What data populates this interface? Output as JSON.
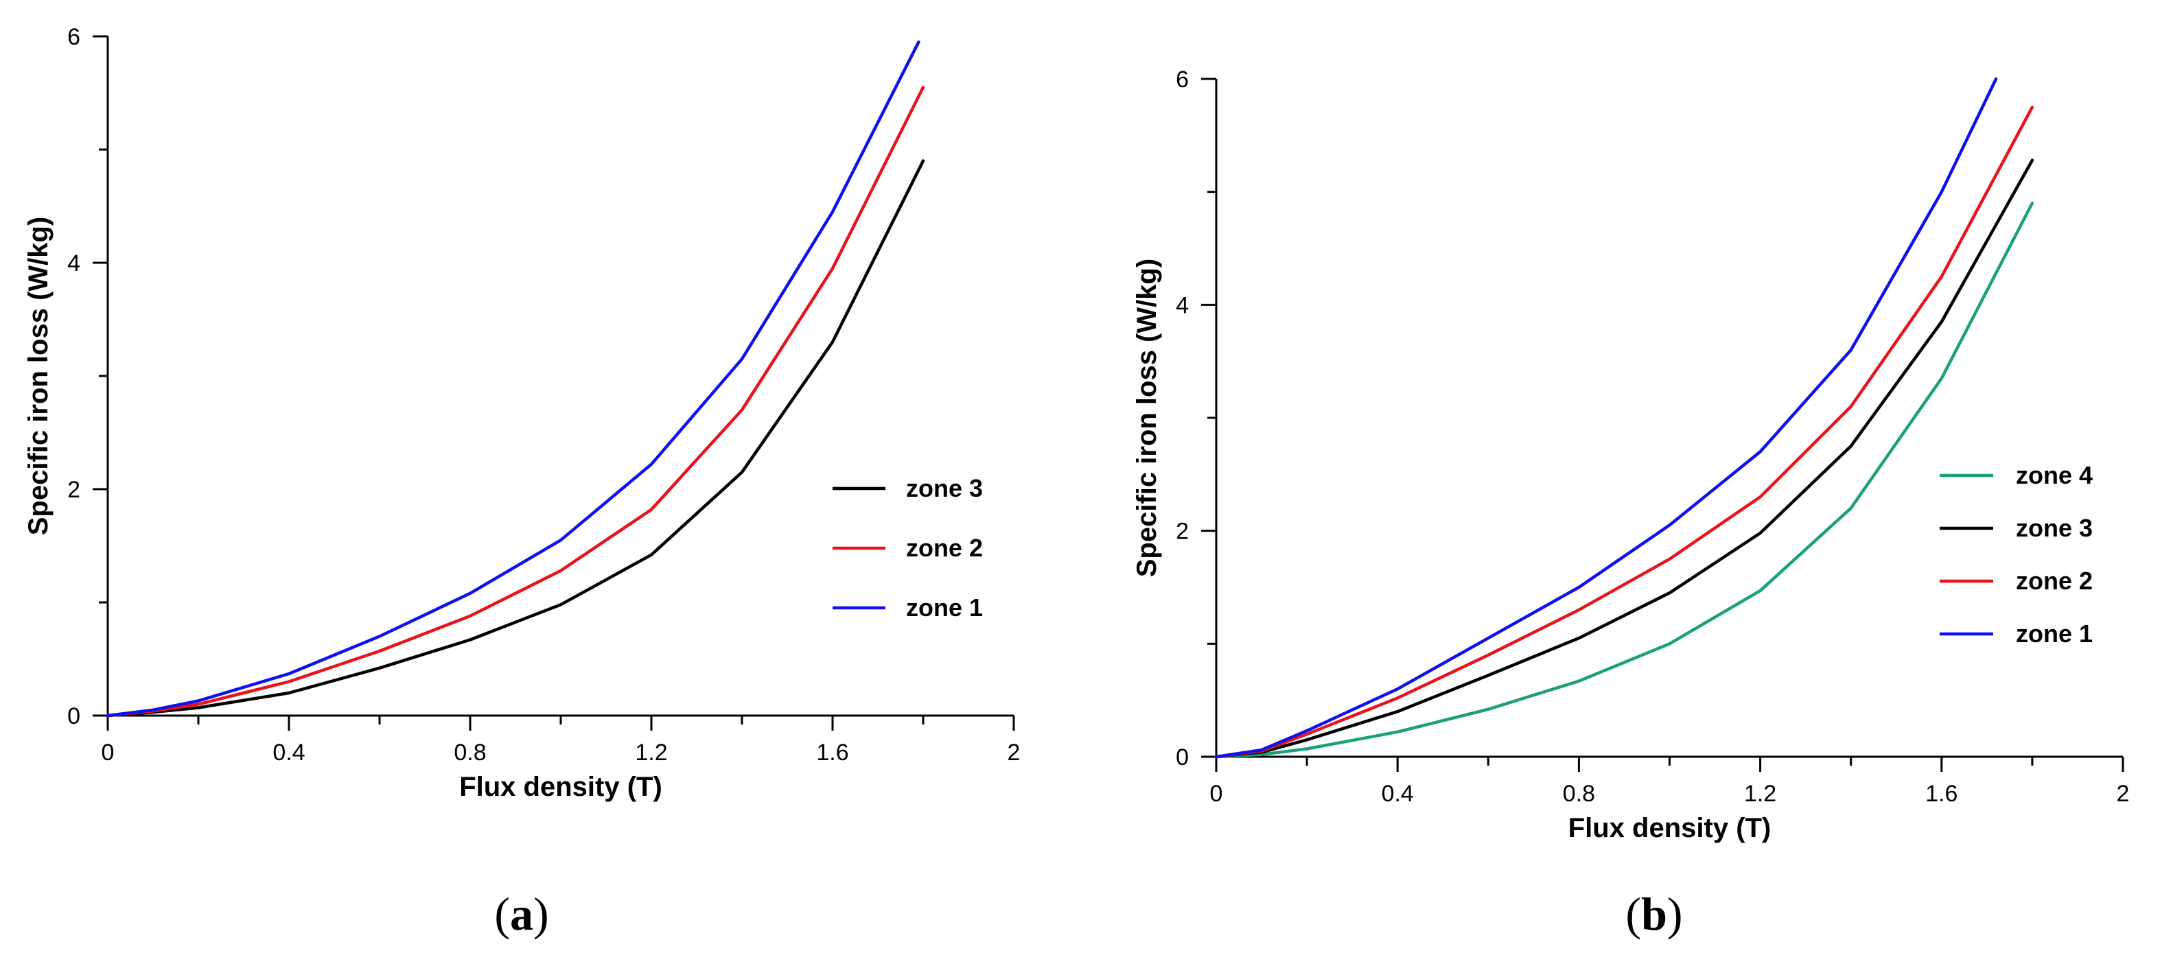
{
  "chart_data": [
    {
      "type": "line",
      "panel": "a",
      "caption_open": "(",
      "caption_letter": "a",
      "caption_close": ")",
      "xlabel": "Flux density (T)",
      "ylabel": "Specific iron loss (W/kg)",
      "xlim": [
        0,
        2
      ],
      "ylim": [
        0,
        6
      ],
      "x_ticks": [
        0,
        0.4,
        0.8,
        1.2,
        1.6,
        2
      ],
      "x_tick_labels": [
        "0",
        "0.4",
        "0.8",
        "1.2",
        "1.6",
        "2"
      ],
      "y_ticks": [
        0,
        2,
        4,
        6
      ],
      "y_tick_labels": [
        "0",
        "2",
        "4",
        "6"
      ],
      "legend_position": "center-right",
      "series": [
        {
          "name": "zone 3",
          "color": "#000000",
          "x": [
            0,
            0.1,
            0.2,
            0.4,
            0.6,
            0.8,
            1.0,
            1.2,
            1.4,
            1.6,
            1.8
          ],
          "y": [
            0,
            0.03,
            0.07,
            0.2,
            0.42,
            0.67,
            0.98,
            1.42,
            2.15,
            3.3,
            4.9
          ]
        },
        {
          "name": "zone 2",
          "color": "#e8141c",
          "x": [
            0,
            0.1,
            0.2,
            0.4,
            0.6,
            0.8,
            1.0,
            1.2,
            1.4,
            1.6,
            1.8
          ],
          "y": [
            0,
            0.04,
            0.1,
            0.3,
            0.57,
            0.88,
            1.28,
            1.82,
            2.7,
            3.95,
            5.55
          ]
        },
        {
          "name": "zone 1",
          "color": "#1010ee",
          "x": [
            0,
            0.1,
            0.2,
            0.4,
            0.6,
            0.8,
            1.0,
            1.2,
            1.4,
            1.6,
            1.79
          ],
          "y": [
            0,
            0.05,
            0.13,
            0.37,
            0.7,
            1.08,
            1.55,
            2.22,
            3.15,
            4.45,
            5.95
          ]
        }
      ]
    },
    {
      "type": "line",
      "panel": "b",
      "caption_open": "(",
      "caption_letter": "b",
      "caption_close": ")",
      "xlabel": "Flux density (T)",
      "ylabel": "Specific iron loss (W/kg)",
      "xlim": [
        0,
        2
      ],
      "ylim": [
        0,
        6
      ],
      "x_ticks": [
        0,
        0.4,
        0.8,
        1.2,
        1.6,
        2
      ],
      "x_tick_labels": [
        "0",
        "0.4",
        "0.8",
        "1.2",
        "1.6",
        "2"
      ],
      "y_ticks": [
        0,
        2,
        4,
        6
      ],
      "y_tick_labels": [
        "0",
        "2",
        "4",
        "6"
      ],
      "legend_position": "center-right",
      "series": [
        {
          "name": "zone 4",
          "color": "#1aa07c",
          "x": [
            0,
            0.1,
            0.2,
            0.4,
            0.6,
            0.8,
            1.0,
            1.2,
            1.4,
            1.6,
            1.8
          ],
          "y": [
            0,
            0.02,
            0.07,
            0.22,
            0.42,
            0.67,
            1.0,
            1.47,
            2.2,
            3.35,
            4.9
          ]
        },
        {
          "name": "zone 3",
          "color": "#000000",
          "x": [
            0,
            0.1,
            0.2,
            0.4,
            0.6,
            0.8,
            1.0,
            1.2,
            1.4,
            1.6,
            1.8
          ],
          "y": [
            0,
            0.04,
            0.15,
            0.4,
            0.72,
            1.05,
            1.45,
            1.98,
            2.75,
            3.85,
            5.28
          ]
        },
        {
          "name": "zone 2",
          "color": "#e8141c",
          "x": [
            0,
            0.1,
            0.2,
            0.4,
            0.6,
            0.8,
            1.0,
            1.2,
            1.4,
            1.6,
            1.8
          ],
          "y": [
            0,
            0.05,
            0.2,
            0.52,
            0.9,
            1.3,
            1.75,
            2.3,
            3.1,
            4.25,
            5.75
          ]
        },
        {
          "name": "zone 1",
          "color": "#1010ee",
          "x": [
            0,
            0.1,
            0.2,
            0.4,
            0.6,
            0.8,
            1.0,
            1.2,
            1.4,
            1.6,
            1.72
          ],
          "y": [
            0,
            0.06,
            0.23,
            0.6,
            1.05,
            1.5,
            2.05,
            2.7,
            3.6,
            5.0,
            6.0
          ]
        }
      ]
    }
  ]
}
